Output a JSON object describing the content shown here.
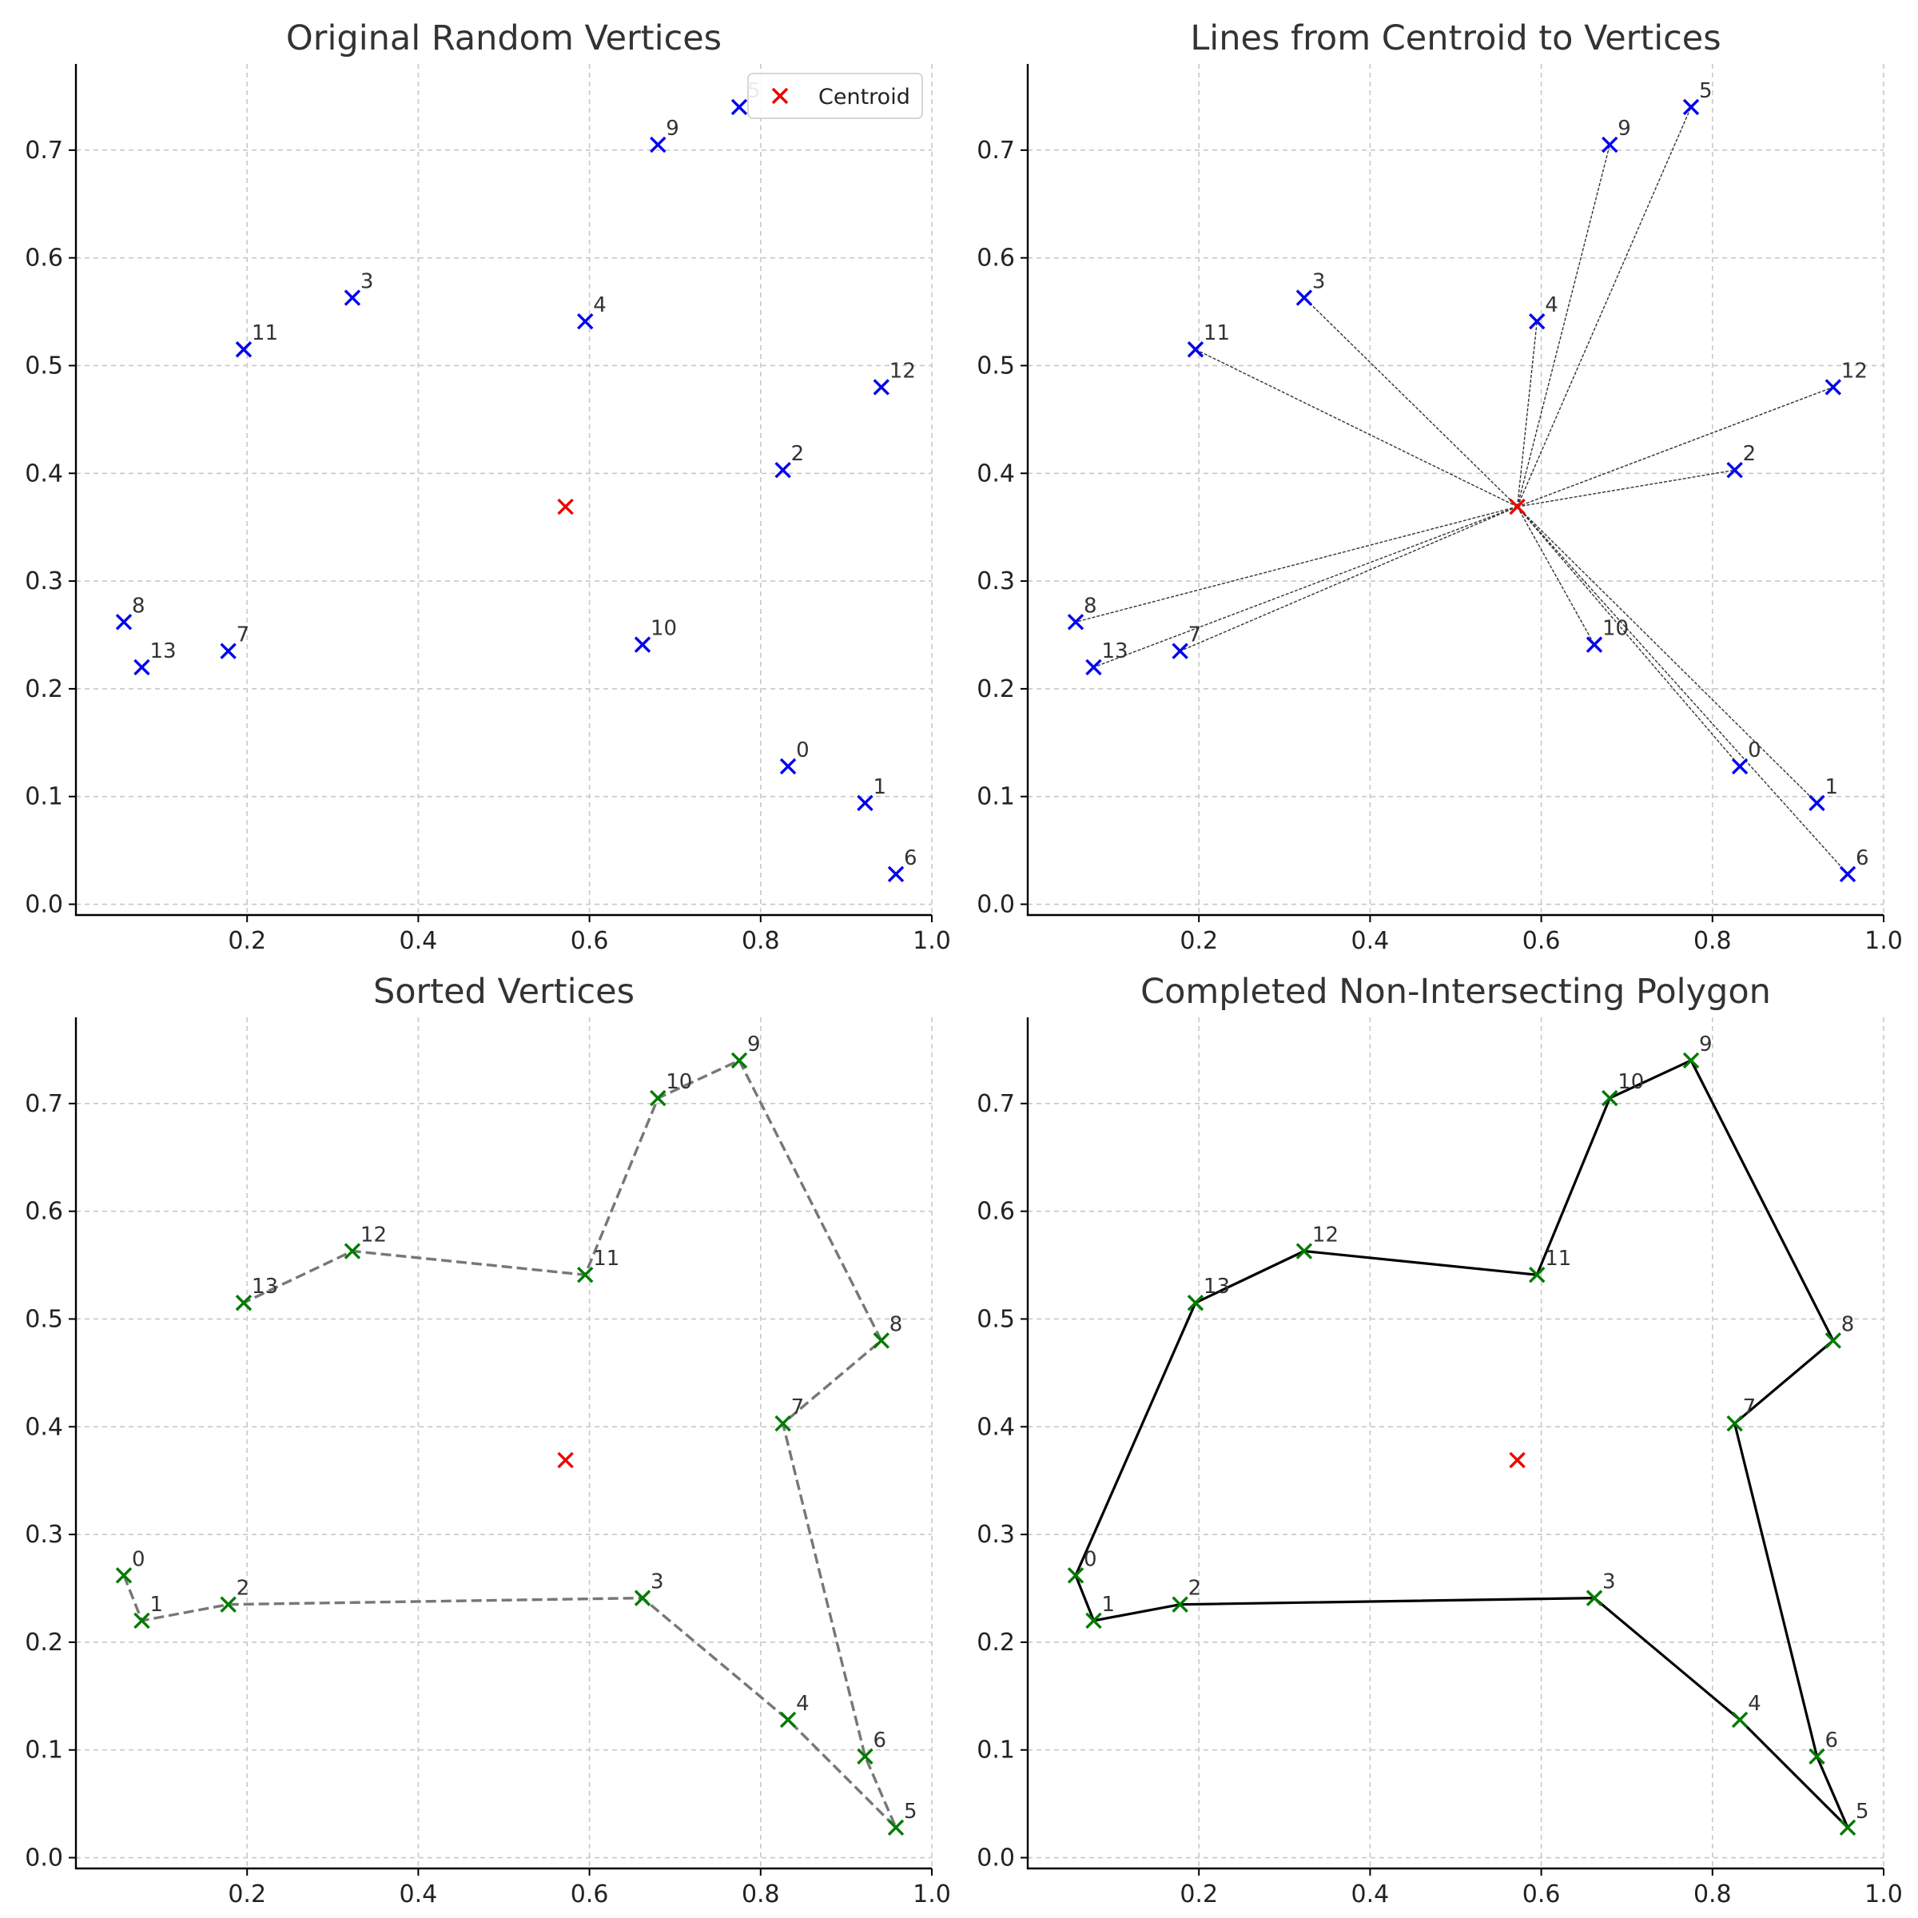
{
  "colors": {
    "vertex_blue": "#0000ee",
    "vertex_green": "#007a00",
    "centroid_red": "#ee0000",
    "ray_line": "#333333",
    "sorted_path": "#777777",
    "polygon_edge": "#000000",
    "grid": "#c8c8c8"
  },
  "chart_data": [
    {
      "type": "scatter",
      "title": "Original Random Vertices",
      "xlim": [
        0.0,
        1.0
      ],
      "ylim": [
        -0.01,
        0.78
      ],
      "xticks": [
        "0.2",
        "0.4",
        "0.6",
        "0.8",
        "1.0"
      ],
      "yticks": [
        "0.0",
        "0.1",
        "0.2",
        "0.3",
        "0.4",
        "0.5",
        "0.6",
        "0.7"
      ],
      "grid": true,
      "legend": {
        "placement": "top-right",
        "entries": [
          "Centroid"
        ]
      },
      "centroid": {
        "x": 0.572,
        "y": 0.369
      },
      "points": [
        {
          "label": "0",
          "x": 0.832,
          "y": 0.128
        },
        {
          "label": "1",
          "x": 0.922,
          "y": 0.094
        },
        {
          "label": "2",
          "x": 0.826,
          "y": 0.403
        },
        {
          "label": "3",
          "x": 0.323,
          "y": 0.563
        },
        {
          "label": "4",
          "x": 0.595,
          "y": 0.541
        },
        {
          "label": "5",
          "x": 0.775,
          "y": 0.74
        },
        {
          "label": "6",
          "x": 0.958,
          "y": 0.028
        },
        {
          "label": "7",
          "x": 0.178,
          "y": 0.235
        },
        {
          "label": "8",
          "x": 0.056,
          "y": 0.262
        },
        {
          "label": "9",
          "x": 0.68,
          "y": 0.705
        },
        {
          "label": "10",
          "x": 0.662,
          "y": 0.241
        },
        {
          "label": "11",
          "x": 0.196,
          "y": 0.515
        },
        {
          "label": "12",
          "x": 0.941,
          "y": 0.48
        },
        {
          "label": "13",
          "x": 0.077,
          "y": 0.22
        }
      ]
    },
    {
      "type": "scatter",
      "title": "Lines from Centroid to Vertices",
      "xlim": [
        0.0,
        1.0
      ],
      "ylim": [
        -0.01,
        0.78
      ],
      "xticks": [
        "0.2",
        "0.4",
        "0.6",
        "0.8",
        "1.0"
      ],
      "yticks": [
        "0.0",
        "0.1",
        "0.2",
        "0.3",
        "0.4",
        "0.5",
        "0.6",
        "0.7"
      ],
      "grid": true,
      "centroid": {
        "x": 0.572,
        "y": 0.369
      },
      "rays_from_centroid": true,
      "points": [
        {
          "label": "0",
          "x": 0.832,
          "y": 0.128
        },
        {
          "label": "1",
          "x": 0.922,
          "y": 0.094
        },
        {
          "label": "2",
          "x": 0.826,
          "y": 0.403
        },
        {
          "label": "3",
          "x": 0.323,
          "y": 0.563
        },
        {
          "label": "4",
          "x": 0.595,
          "y": 0.541
        },
        {
          "label": "5",
          "x": 0.775,
          "y": 0.74
        },
        {
          "label": "6",
          "x": 0.958,
          "y": 0.028
        },
        {
          "label": "7",
          "x": 0.178,
          "y": 0.235
        },
        {
          "label": "8",
          "x": 0.056,
          "y": 0.262
        },
        {
          "label": "9",
          "x": 0.68,
          "y": 0.705
        },
        {
          "label": "10",
          "x": 0.662,
          "y": 0.241
        },
        {
          "label": "11",
          "x": 0.196,
          "y": 0.515
        },
        {
          "label": "12",
          "x": 0.941,
          "y": 0.48
        },
        {
          "label": "13",
          "x": 0.077,
          "y": 0.22
        }
      ]
    },
    {
      "type": "line",
      "title": "Sorted Vertices",
      "xlim": [
        0.0,
        1.0
      ],
      "ylim": [
        -0.01,
        0.78
      ],
      "xticks": [
        "0.2",
        "0.4",
        "0.6",
        "0.8",
        "1.0"
      ],
      "yticks": [
        "0.0",
        "0.1",
        "0.2",
        "0.3",
        "0.4",
        "0.5",
        "0.6",
        "0.7"
      ],
      "grid": true,
      "centroid": {
        "x": 0.572,
        "y": 0.369
      },
      "path_style": "dashed",
      "closed": false,
      "points": [
        {
          "label": "0",
          "x": 0.056,
          "y": 0.262
        },
        {
          "label": "1",
          "x": 0.077,
          "y": 0.22
        },
        {
          "label": "2",
          "x": 0.178,
          "y": 0.235
        },
        {
          "label": "3",
          "x": 0.662,
          "y": 0.241
        },
        {
          "label": "4",
          "x": 0.832,
          "y": 0.128
        },
        {
          "label": "5",
          "x": 0.958,
          "y": 0.028
        },
        {
          "label": "6",
          "x": 0.922,
          "y": 0.094
        },
        {
          "label": "7",
          "x": 0.826,
          "y": 0.403
        },
        {
          "label": "8",
          "x": 0.941,
          "y": 0.48
        },
        {
          "label": "9",
          "x": 0.775,
          "y": 0.74
        },
        {
          "label": "10",
          "x": 0.68,
          "y": 0.705
        },
        {
          "label": "11",
          "x": 0.595,
          "y": 0.541
        },
        {
          "label": "12",
          "x": 0.323,
          "y": 0.563
        },
        {
          "label": "13",
          "x": 0.196,
          "y": 0.515
        }
      ]
    },
    {
      "type": "line",
      "title": "Completed Non-Intersecting Polygon",
      "xlim": [
        0.0,
        1.0
      ],
      "ylim": [
        -0.01,
        0.78
      ],
      "xticks": [
        "0.2",
        "0.4",
        "0.6",
        "0.8",
        "1.0"
      ],
      "yticks": [
        "0.0",
        "0.1",
        "0.2",
        "0.3",
        "0.4",
        "0.5",
        "0.6",
        "0.7"
      ],
      "grid": true,
      "centroid": {
        "x": 0.572,
        "y": 0.369
      },
      "path_style": "solid",
      "closed": true,
      "points": [
        {
          "label": "0",
          "x": 0.056,
          "y": 0.262
        },
        {
          "label": "1",
          "x": 0.077,
          "y": 0.22
        },
        {
          "label": "2",
          "x": 0.178,
          "y": 0.235
        },
        {
          "label": "3",
          "x": 0.662,
          "y": 0.241
        },
        {
          "label": "4",
          "x": 0.832,
          "y": 0.128
        },
        {
          "label": "5",
          "x": 0.958,
          "y": 0.028
        },
        {
          "label": "6",
          "x": 0.922,
          "y": 0.094
        },
        {
          "label": "7",
          "x": 0.826,
          "y": 0.403
        },
        {
          "label": "8",
          "x": 0.941,
          "y": 0.48
        },
        {
          "label": "9",
          "x": 0.775,
          "y": 0.74
        },
        {
          "label": "10",
          "x": 0.68,
          "y": 0.705
        },
        {
          "label": "11",
          "x": 0.595,
          "y": 0.541
        },
        {
          "label": "12",
          "x": 0.323,
          "y": 0.563
        },
        {
          "label": "13",
          "x": 0.196,
          "y": 0.515
        }
      ]
    }
  ]
}
